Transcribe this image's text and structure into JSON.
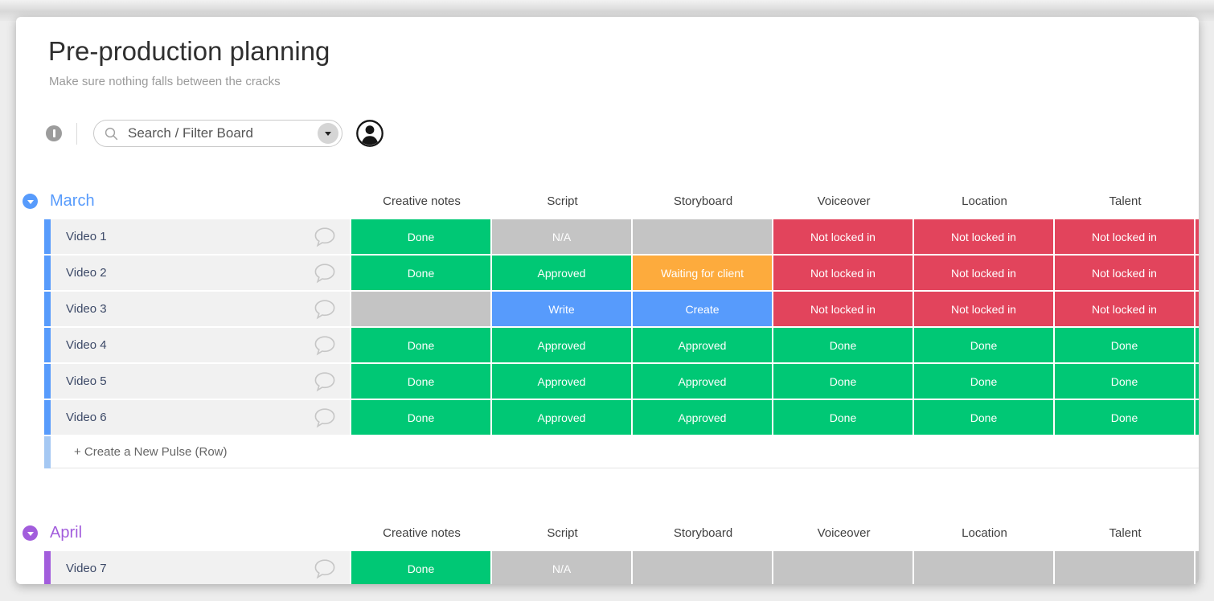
{
  "page": {
    "title": "Pre-production planning",
    "subtitle": "Make sure nothing falls between the cracks"
  },
  "toolbar": {
    "search_placeholder": "Search / Filter Board",
    "icons": {
      "panel_toggle": "vertical-bar-circle",
      "search": "magnifier",
      "dropdown": "caret-down",
      "user": "person-circle"
    }
  },
  "columns": [
    "Creative notes",
    "Script",
    "Storyboard",
    "Voiceover",
    "Location",
    "Talent"
  ],
  "colors": {
    "green": "#00c875",
    "red": "#e2445c",
    "orange": "#fdab3d",
    "blue": "#579bfc",
    "gray": "#c4c4c4",
    "march_accent": "#579bfc",
    "april_accent": "#a25ddc",
    "add_row_accent": "#a5c8f3",
    "name_cell_bg": "#f1f1f1"
  },
  "groups": [
    {
      "title": "March",
      "color": "#579bfc",
      "add_row_label": "+ Create a New Pulse (Row)",
      "add_row_accent": "#a5c8f3",
      "rows": [
        {
          "name": "Video 1",
          "cells": [
            {
              "label": "Done",
              "color": "#00c875"
            },
            {
              "label": "N/A",
              "color": "#c4c4c4"
            },
            {
              "label": "",
              "color": "#c4c4c4"
            },
            {
              "label": "Not locked in",
              "color": "#e2445c"
            },
            {
              "label": "Not locked in",
              "color": "#e2445c"
            },
            {
              "label": "Not locked in",
              "color": "#e2445c"
            }
          ],
          "overflow_color": "#e2445c"
        },
        {
          "name": "Video 2",
          "cells": [
            {
              "label": "Done",
              "color": "#00c875"
            },
            {
              "label": "Approved",
              "color": "#00c875"
            },
            {
              "label": "Waiting for client",
              "color": "#fdab3d"
            },
            {
              "label": "Not locked in",
              "color": "#e2445c"
            },
            {
              "label": "Not locked in",
              "color": "#e2445c"
            },
            {
              "label": "Not locked in",
              "color": "#e2445c"
            }
          ],
          "overflow_color": "#e2445c"
        },
        {
          "name": "Video 3",
          "cells": [
            {
              "label": "",
              "color": "#c4c4c4"
            },
            {
              "label": "Write",
              "color": "#579bfc"
            },
            {
              "label": "Create",
              "color": "#579bfc"
            },
            {
              "label": "Not locked in",
              "color": "#e2445c"
            },
            {
              "label": "Not locked in",
              "color": "#e2445c"
            },
            {
              "label": "Not locked in",
              "color": "#e2445c"
            }
          ],
          "overflow_color": "#e2445c"
        },
        {
          "name": "Video 4",
          "cells": [
            {
              "label": "Done",
              "color": "#00c875"
            },
            {
              "label": "Approved",
              "color": "#00c875"
            },
            {
              "label": "Approved",
              "color": "#00c875"
            },
            {
              "label": "Done",
              "color": "#00c875"
            },
            {
              "label": "Done",
              "color": "#00c875"
            },
            {
              "label": "Done",
              "color": "#00c875"
            }
          ],
          "overflow_color": "#00c875"
        },
        {
          "name": "Video 5",
          "cells": [
            {
              "label": "Done",
              "color": "#00c875"
            },
            {
              "label": "Approved",
              "color": "#00c875"
            },
            {
              "label": "Approved",
              "color": "#00c875"
            },
            {
              "label": "Done",
              "color": "#00c875"
            },
            {
              "label": "Done",
              "color": "#00c875"
            },
            {
              "label": "Done",
              "color": "#00c875"
            }
          ],
          "overflow_color": "#00c875"
        },
        {
          "name": "Video 6",
          "cells": [
            {
              "label": "Done",
              "color": "#00c875"
            },
            {
              "label": "Approved",
              "color": "#00c875"
            },
            {
              "label": "Approved",
              "color": "#00c875"
            },
            {
              "label": "Done",
              "color": "#00c875"
            },
            {
              "label": "Done",
              "color": "#00c875"
            },
            {
              "label": "Done",
              "color": "#00c875"
            }
          ],
          "overflow_color": "#00c875"
        }
      ]
    },
    {
      "title": "April",
      "color": "#a25ddc",
      "rows": [
        {
          "name": "Video 7",
          "cells": [
            {
              "label": "Done",
              "color": "#00c875"
            },
            {
              "label": "N/A",
              "color": "#c4c4c4"
            },
            {
              "label": "",
              "color": "#c4c4c4"
            },
            {
              "label": "",
              "color": "#c4c4c4"
            },
            {
              "label": "",
              "color": "#c4c4c4"
            },
            {
              "label": "",
              "color": "#c4c4c4"
            }
          ],
          "overflow_color": "#c4c4c4"
        }
      ]
    }
  ]
}
